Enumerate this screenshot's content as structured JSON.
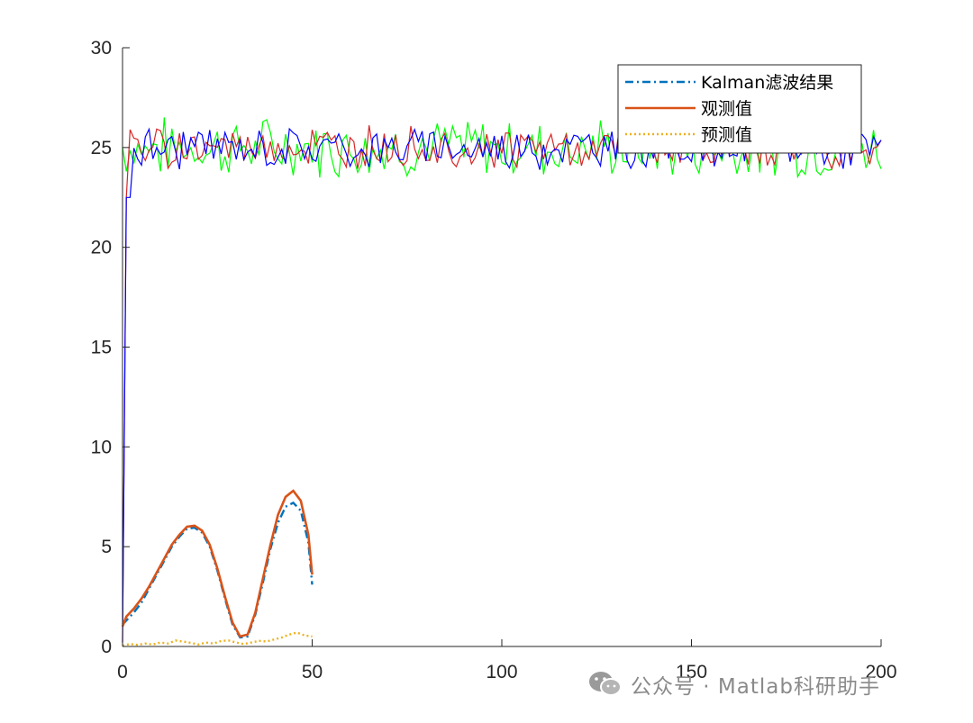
{
  "chart_data": {
    "type": "line",
    "xlim": [
      0,
      200
    ],
    "ylim": [
      0,
      30
    ],
    "xticks": [
      "0",
      "50",
      "100",
      "150",
      "200"
    ],
    "yticks": [
      "0",
      "5",
      "10",
      "15",
      "20",
      "25",
      "30"
    ],
    "grid": false,
    "legend_position": "top-right",
    "series": [
      {
        "name": "Kalman滤波结果",
        "color": "#0072BD",
        "style": "dash-dot",
        "x": [
          0,
          1,
          3,
          5,
          7,
          9,
          11,
          13,
          15,
          17,
          19,
          21,
          23,
          25,
          27,
          29,
          31,
          33,
          35,
          37,
          39,
          41,
          43,
          45,
          47,
          49,
          50
        ],
        "y": [
          1.1,
          1.3,
          1.7,
          2.2,
          2.9,
          3.6,
          4.3,
          5.0,
          5.5,
          5.9,
          5.95,
          5.7,
          5.0,
          3.8,
          2.4,
          1.1,
          0.45,
          0.5,
          1.6,
          3.2,
          4.9,
          6.2,
          7.0,
          7.2,
          6.8,
          5.2,
          3.1
        ]
      },
      {
        "name": "观测值",
        "color": "#D95319",
        "style": "solid",
        "x": [
          0,
          1,
          3,
          5,
          7,
          9,
          11,
          13,
          15,
          17,
          19,
          21,
          23,
          25,
          27,
          29,
          31,
          33,
          35,
          37,
          39,
          41,
          43,
          45,
          47,
          49,
          50
        ],
        "y": [
          1.0,
          1.5,
          1.9,
          2.4,
          3.0,
          3.7,
          4.4,
          5.1,
          5.6,
          6.0,
          6.05,
          5.8,
          5.1,
          3.9,
          2.5,
          1.2,
          0.5,
          0.6,
          1.7,
          3.4,
          5.1,
          6.6,
          7.5,
          7.8,
          7.3,
          5.6,
          3.6
        ]
      },
      {
        "name": "预测值",
        "color": "#EDB120",
        "style": "dotted",
        "x": [
          0,
          2,
          4,
          6,
          8,
          10,
          12,
          14,
          16,
          18,
          20,
          22,
          24,
          26,
          28,
          30,
          32,
          34,
          36,
          38,
          40,
          42,
          44,
          46,
          48,
          50
        ],
        "y": [
          0.05,
          0.12,
          0.08,
          0.15,
          0.1,
          0.2,
          0.15,
          0.3,
          0.25,
          0.18,
          0.1,
          0.2,
          0.15,
          0.28,
          0.3,
          0.2,
          0.12,
          0.2,
          0.28,
          0.25,
          0.35,
          0.45,
          0.6,
          0.7,
          0.55,
          0.5
        ]
      }
    ],
    "noise_series": [
      {
        "color": "#00FF00",
        "base": 25,
        "amplitude": 1.3,
        "start": 0,
        "seed": 7
      },
      {
        "color": "#D62728",
        "base": 25,
        "amplitude": 0.9,
        "start": 0,
        "seed": 19,
        "rise_at": 2
      },
      {
        "color": "#0000FF",
        "base": 25,
        "amplitude": 0.9,
        "start": 0,
        "seed": 31,
        "rise_at": 3
      }
    ]
  },
  "watermark": {
    "icon": "wechat-icon",
    "text": "公众号 · Matlab科研助手"
  }
}
